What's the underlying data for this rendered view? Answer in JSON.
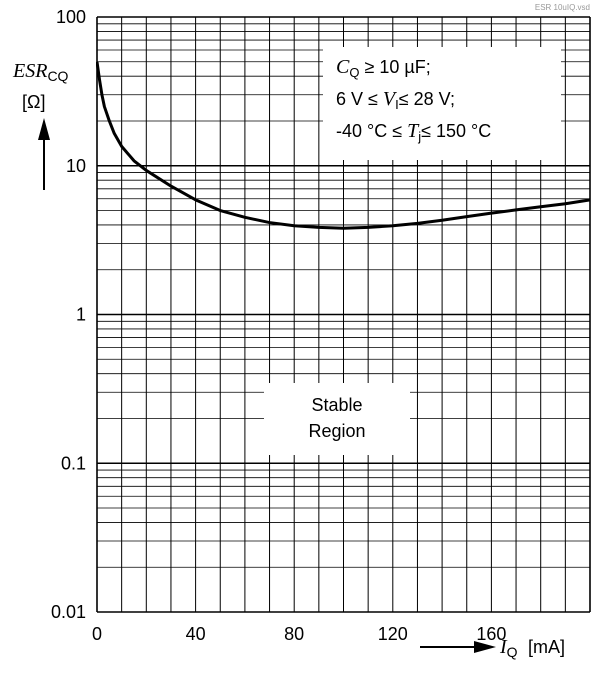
{
  "file_tag": "ESR 10uIQ.vsd",
  "y_axis": {
    "symbol_main": "ESR",
    "symbol_sub": "CQ",
    "unit": "[Ω]",
    "tick_labels": [
      "100",
      "10",
      "1",
      "0.1",
      "0.01"
    ]
  },
  "x_axis": {
    "symbol_main": "I",
    "symbol_sub": "Q",
    "unit": "[mA]",
    "tick_labels": [
      "0",
      "40",
      "80",
      "120",
      "160"
    ]
  },
  "conditions": {
    "line1": {
      "sym": "C",
      "sub": "Q",
      "rest": " ≥ 10 µF;"
    },
    "line2": {
      "pre": "6 V ≤ ",
      "sym": "V",
      "sub": "I",
      "rest": "≤ 28 V;"
    },
    "line3": {
      "pre": "-40 °C ≤ ",
      "sym": "T",
      "sub": "j",
      "rest": "≤ 150 °C"
    }
  },
  "region_label": {
    "line1": "Stable",
    "line2": "Region"
  },
  "chart_data": {
    "type": "line",
    "xlabel": "I_Q [mA]",
    "ylabel": "ESR_CQ [Ω]",
    "x_scale": "linear",
    "y_scale": "log",
    "xlim": [
      0,
      200
    ],
    "ylim": [
      0.01,
      100
    ],
    "grid": true,
    "series": [
      {
        "x": [
          0,
          1,
          2,
          3,
          5,
          7,
          10,
          15,
          20,
          30,
          40,
          50,
          60,
          70,
          80,
          90,
          100,
          110,
          120,
          130,
          140,
          150,
          160,
          170,
          180,
          190,
          200
        ],
        "y": [
          50,
          38,
          30,
          25,
          20,
          16.5,
          13.5,
          10.8,
          9.3,
          7.3,
          5.9,
          5.0,
          4.5,
          4.15,
          3.95,
          3.85,
          3.8,
          3.85,
          3.95,
          4.1,
          4.3,
          4.55,
          4.8,
          5.05,
          5.3,
          5.55,
          5.9
        ]
      }
    ]
  }
}
